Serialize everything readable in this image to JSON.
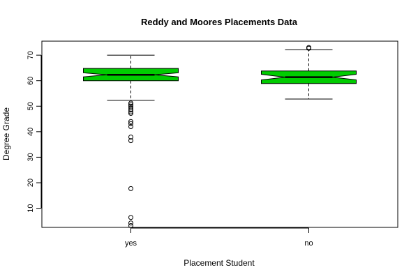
{
  "chart_data": {
    "type": "boxplot",
    "title": "Reddy and Moores Placements Data",
    "xlabel": "Placement Student",
    "ylabel": "Degree Grade",
    "categories": [
      "yes",
      "no"
    ],
    "ylim": [
      2.5,
      75.5
    ],
    "yticks": [
      10,
      20,
      30,
      40,
      50,
      60,
      70
    ],
    "notched": true,
    "box_color": "#00cc00",
    "boxes": [
      {
        "category": "yes",
        "whisker_low": 52.3,
        "q1": 60.0,
        "median": 62.3,
        "q3": 64.8,
        "whisker_high": 70.0,
        "notch_low": 61.5,
        "notch_high": 63.1,
        "outliers": [
          51.2,
          50.6,
          50.0,
          49.3,
          48.5,
          47.8,
          47.2,
          44.0,
          43.2,
          42.0,
          37.9,
          36.5,
          17.7,
          6.4,
          4.2,
          3.2
        ]
      },
      {
        "category": "no",
        "whisker_low": 52.8,
        "q1": 58.9,
        "median": 61.4,
        "q3": 63.8,
        "whisker_high": 72.1,
        "notch_low": 60.3,
        "notch_high": 62.5,
        "outliers": [
          72.7,
          73.0
        ]
      }
    ]
  }
}
